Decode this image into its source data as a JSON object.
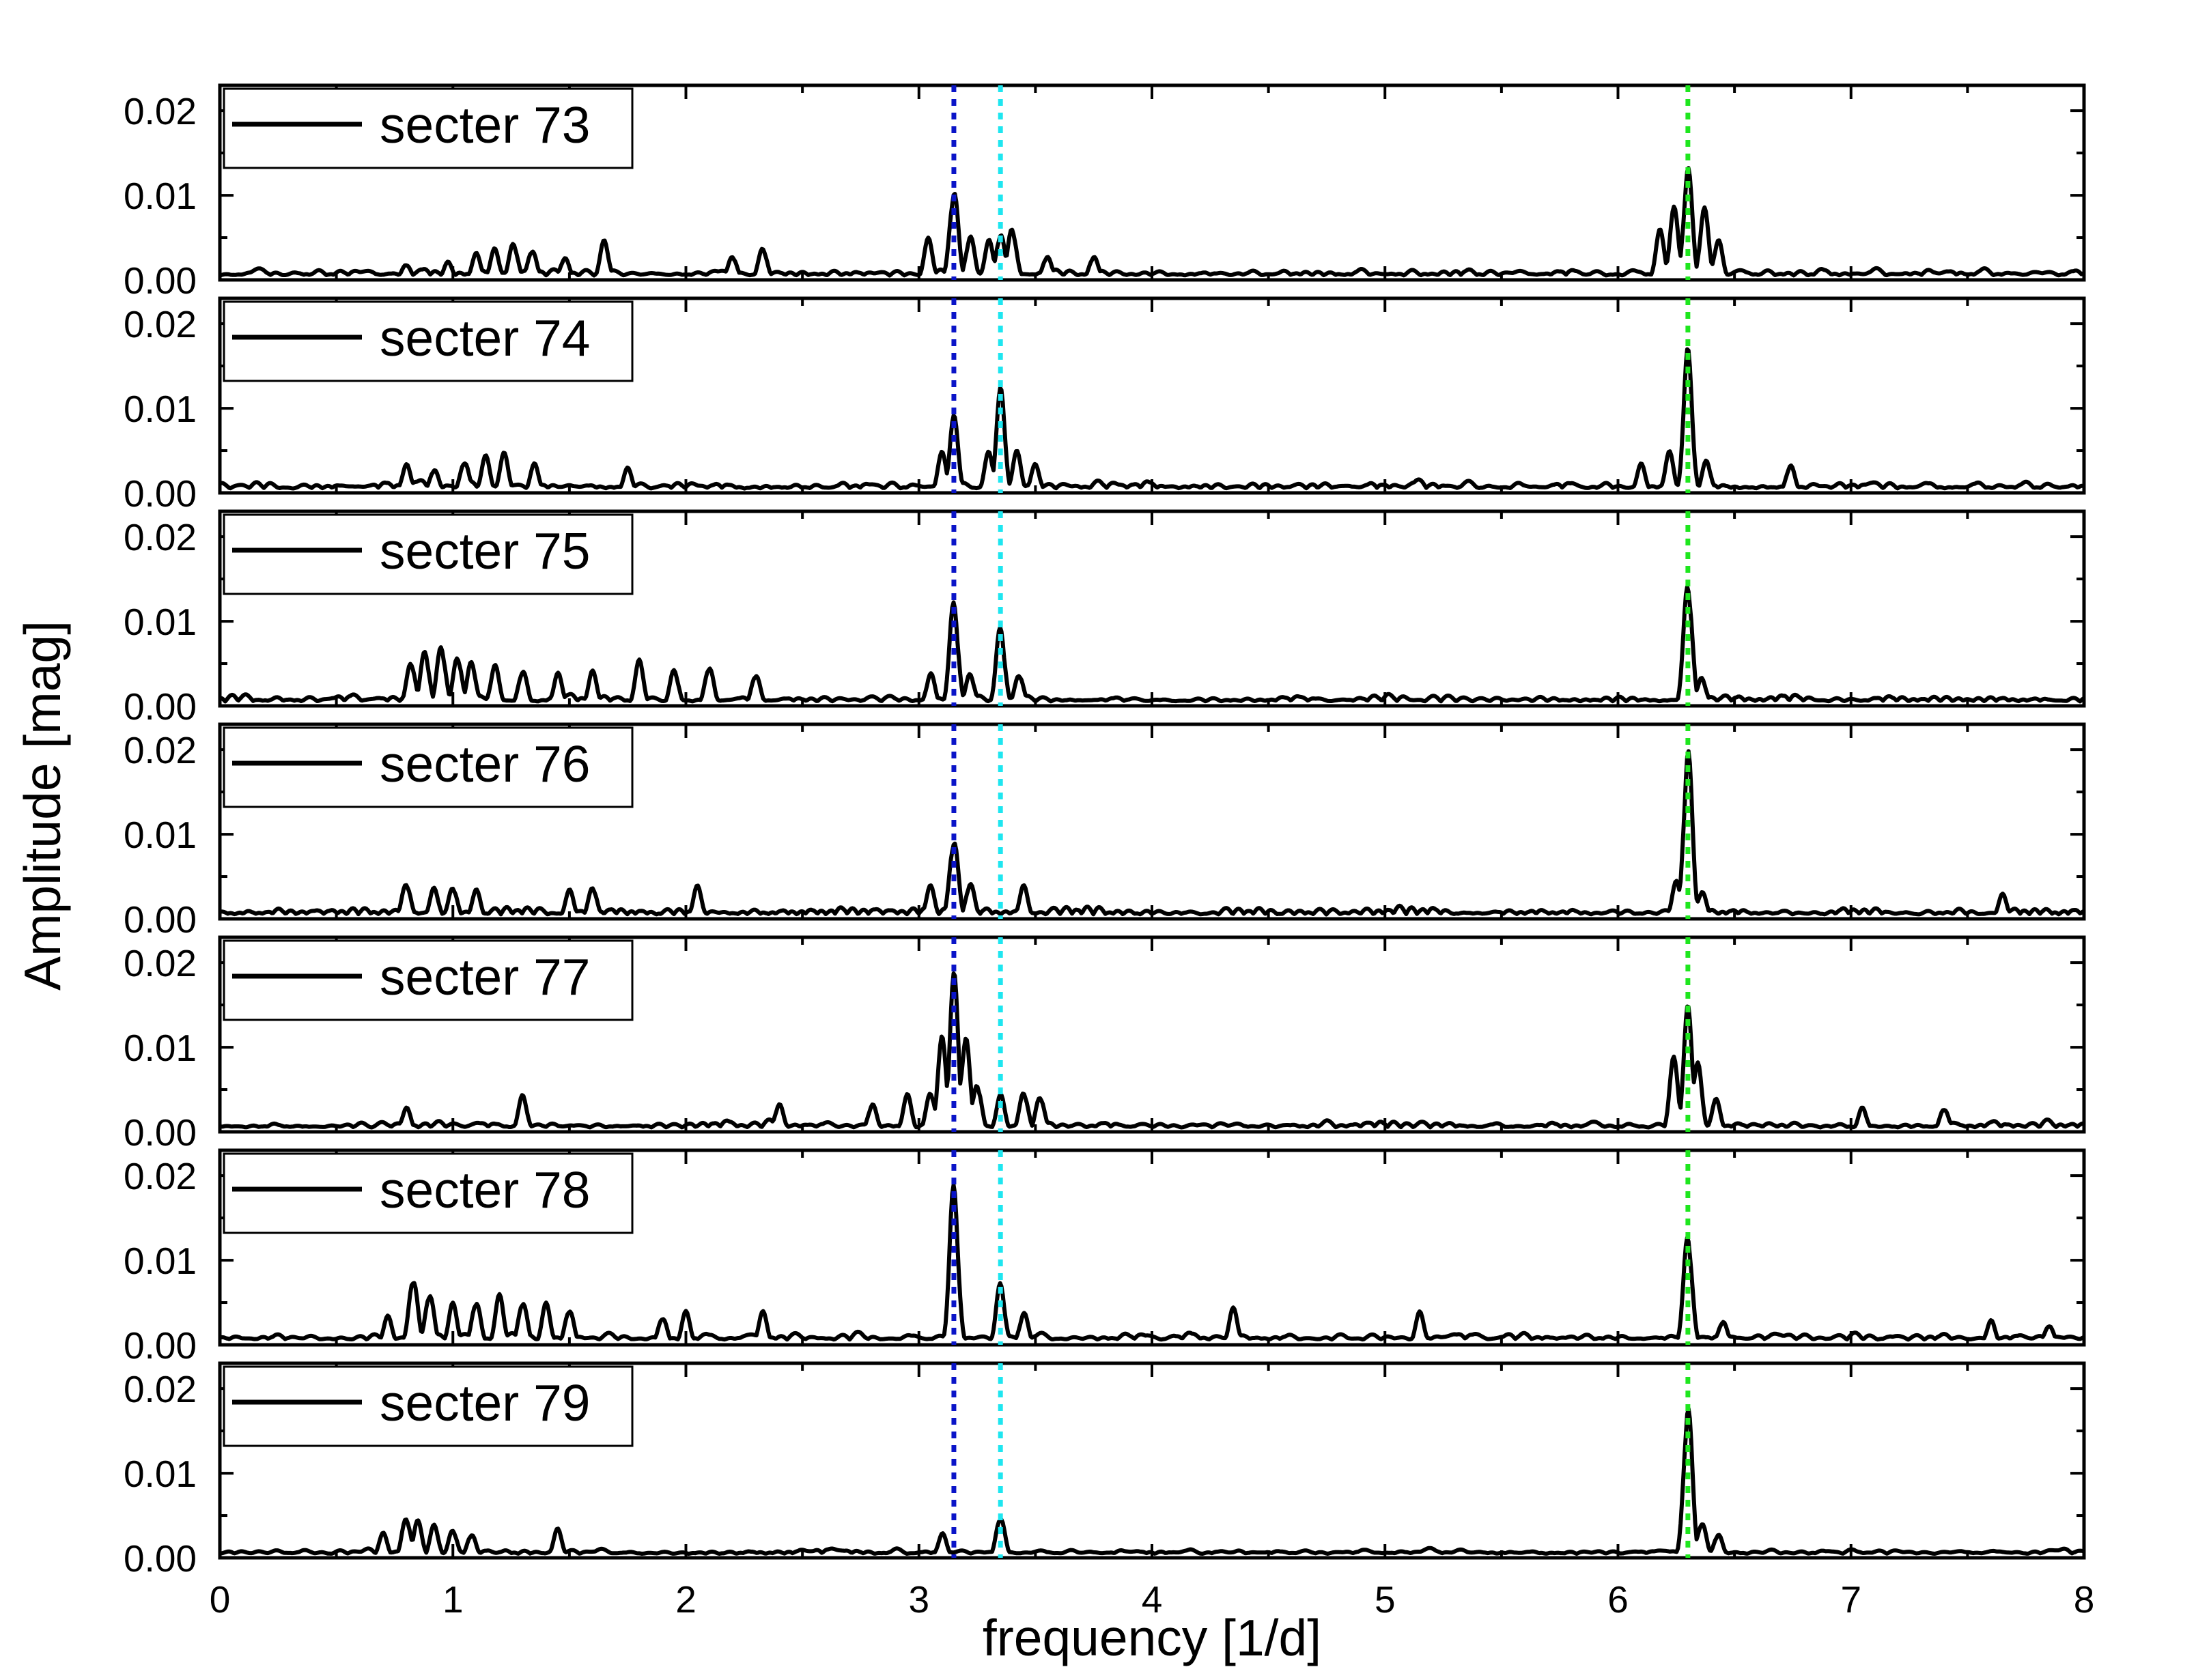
{
  "chart_data": {
    "type": "line",
    "xlabel": "frequency [1/d]",
    "ylabel": "Amplitude [mag]",
    "xlim": [
      0,
      8
    ],
    "ylim": [
      0,
      0.023
    ],
    "x_ticks": [
      "0",
      "1",
      "2",
      "3",
      "4",
      "5",
      "6",
      "7",
      "8"
    ],
    "y_ticks": [
      "0.00",
      "0.01",
      "0.02"
    ],
    "legend_placement": "top-left",
    "line_color": "#000000",
    "reference_lines": [
      {
        "x": 3.15,
        "color": "#0a14c8"
      },
      {
        "x": 3.35,
        "color": "#1ee6f0"
      },
      {
        "x": 6.3,
        "color": "#1ee61e"
      }
    ],
    "panels": [
      {
        "name": "secter 73",
        "noise_level": 0.0011,
        "peaks": [
          [
            0.8,
            0.002
          ],
          [
            0.98,
            0.0022
          ],
          [
            1.1,
            0.0032
          ],
          [
            1.18,
            0.0038
          ],
          [
            1.26,
            0.0046
          ],
          [
            1.34,
            0.0038
          ],
          [
            1.48,
            0.0028
          ],
          [
            1.65,
            0.0048
          ],
          [
            2.2,
            0.003
          ],
          [
            2.33,
            0.004
          ],
          [
            3.04,
            0.005
          ],
          [
            3.15,
            0.0112
          ],
          [
            3.22,
            0.0055
          ],
          [
            3.3,
            0.0048
          ],
          [
            3.35,
            0.0058
          ],
          [
            3.4,
            0.0065
          ],
          [
            3.55,
            0.003
          ],
          [
            3.75,
            0.003
          ],
          [
            6.18,
            0.006
          ],
          [
            6.24,
            0.0088
          ],
          [
            6.3,
            0.0138
          ],
          [
            6.37,
            0.0088
          ],
          [
            6.43,
            0.005
          ]
        ]
      },
      {
        "name": "secter 74",
        "noise_level": 0.0011,
        "peaks": [
          [
            0.8,
            0.0035
          ],
          [
            0.92,
            0.003
          ],
          [
            1.05,
            0.004
          ],
          [
            1.14,
            0.0045
          ],
          [
            1.22,
            0.0048
          ],
          [
            1.35,
            0.0035
          ],
          [
            1.75,
            0.003
          ],
          [
            3.1,
            0.005
          ],
          [
            3.15,
            0.0092
          ],
          [
            3.3,
            0.005
          ],
          [
            3.35,
            0.0125
          ],
          [
            3.42,
            0.005
          ],
          [
            3.5,
            0.0035
          ],
          [
            6.1,
            0.0035
          ],
          [
            6.22,
            0.005
          ],
          [
            6.3,
            0.0172
          ],
          [
            6.38,
            0.004
          ],
          [
            6.74,
            0.0035
          ]
        ]
      },
      {
        "name": "secter 75",
        "noise_level": 0.0011,
        "peaks": [
          [
            0.82,
            0.0055
          ],
          [
            0.88,
            0.0068
          ],
          [
            0.95,
            0.0075
          ],
          [
            1.02,
            0.0062
          ],
          [
            1.08,
            0.0055
          ],
          [
            1.18,
            0.005
          ],
          [
            1.3,
            0.0045
          ],
          [
            1.45,
            0.004
          ],
          [
            1.6,
            0.0042
          ],
          [
            1.8,
            0.0055
          ],
          [
            1.95,
            0.0045
          ],
          [
            2.1,
            0.005
          ],
          [
            2.3,
            0.004
          ],
          [
            3.05,
            0.004
          ],
          [
            3.15,
            0.0128
          ],
          [
            3.22,
            0.004
          ],
          [
            3.35,
            0.0097
          ],
          [
            3.43,
            0.004
          ],
          [
            6.3,
            0.0155
          ],
          [
            6.36,
            0.0035
          ]
        ]
      },
      {
        "name": "secter 76",
        "noise_level": 0.0011,
        "peaks": [
          [
            0.8,
            0.0045
          ],
          [
            0.92,
            0.0038
          ],
          [
            1.0,
            0.004
          ],
          [
            1.1,
            0.0035
          ],
          [
            1.5,
            0.0035
          ],
          [
            1.6,
            0.004
          ],
          [
            2.05,
            0.004
          ],
          [
            3.05,
            0.004
          ],
          [
            3.15,
            0.01
          ],
          [
            3.22,
            0.0045
          ],
          [
            3.45,
            0.004
          ],
          [
            6.25,
            0.0045
          ],
          [
            6.3,
            0.021
          ],
          [
            6.36,
            0.0035
          ],
          [
            7.65,
            0.003
          ]
        ]
      },
      {
        "name": "secter 77",
        "noise_level": 0.0011,
        "peaks": [
          [
            0.8,
            0.003
          ],
          [
            1.3,
            0.0045
          ],
          [
            2.4,
            0.0035
          ],
          [
            2.8,
            0.0035
          ],
          [
            2.95,
            0.0045
          ],
          [
            3.05,
            0.005
          ],
          [
            3.1,
            0.0115
          ],
          [
            3.15,
            0.019
          ],
          [
            3.2,
            0.012
          ],
          [
            3.25,
            0.006
          ],
          [
            3.35,
            0.0045
          ],
          [
            3.45,
            0.005
          ],
          [
            3.52,
            0.0045
          ],
          [
            6.24,
            0.009
          ],
          [
            6.3,
            0.015
          ],
          [
            6.34,
            0.009
          ],
          [
            6.42,
            0.004
          ],
          [
            7.05,
            0.003
          ],
          [
            7.4,
            0.003
          ]
        ]
      },
      {
        "name": "secter 78",
        "noise_level": 0.0013,
        "peaks": [
          [
            0.72,
            0.0035
          ],
          [
            0.83,
            0.0085
          ],
          [
            0.9,
            0.0065
          ],
          [
            1.0,
            0.005
          ],
          [
            1.1,
            0.0055
          ],
          [
            1.2,
            0.006
          ],
          [
            1.3,
            0.0055
          ],
          [
            1.4,
            0.005
          ],
          [
            1.5,
            0.0045
          ],
          [
            1.9,
            0.0035
          ],
          [
            2.0,
            0.004
          ],
          [
            2.33,
            0.004
          ],
          [
            3.15,
            0.0195
          ],
          [
            3.35,
            0.0075
          ],
          [
            3.45,
            0.004
          ],
          [
            4.35,
            0.0045
          ],
          [
            5.15,
            0.004
          ],
          [
            6.3,
            0.0137
          ],
          [
            6.45,
            0.003
          ],
          [
            7.6,
            0.003
          ],
          [
            7.85,
            0.0025
          ]
        ]
      },
      {
        "name": "secter 79",
        "noise_level": 0.001,
        "peaks": [
          [
            0.7,
            0.003
          ],
          [
            0.8,
            0.005
          ],
          [
            0.85,
            0.0045
          ],
          [
            0.92,
            0.004
          ],
          [
            1.0,
            0.0035
          ],
          [
            1.08,
            0.003
          ],
          [
            1.45,
            0.0035
          ],
          [
            3.1,
            0.003
          ],
          [
            3.35,
            0.0052
          ],
          [
            6.3,
            0.019
          ],
          [
            6.36,
            0.0045
          ],
          [
            6.43,
            0.003
          ]
        ]
      }
    ]
  }
}
